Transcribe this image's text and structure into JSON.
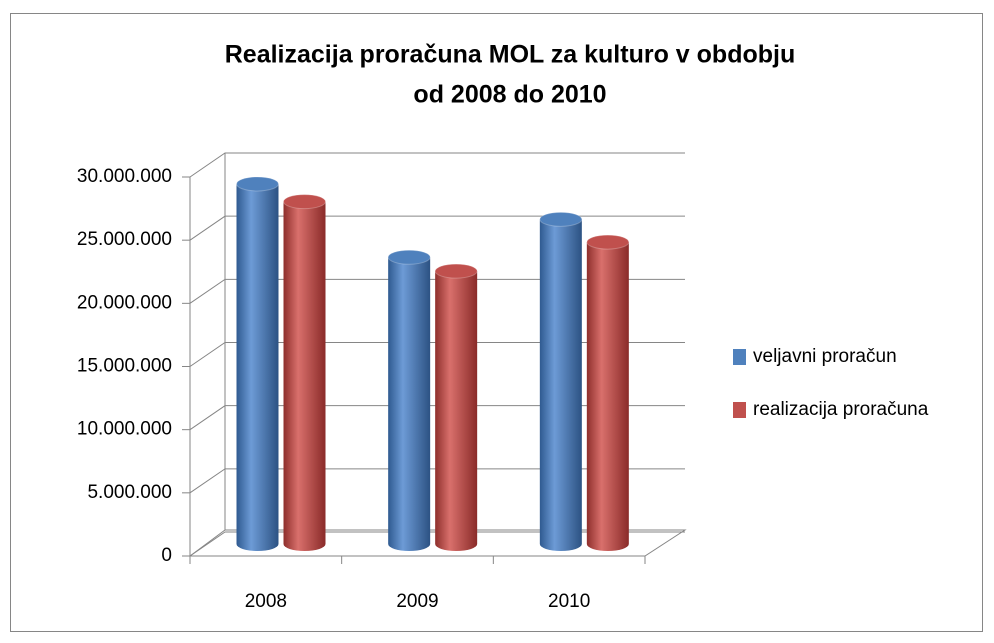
{
  "chart_data": {
    "type": "bar3d",
    "title": [
      "Realizacija proračuna MOL za kulturo v obdobju",
      "od 2008 do 2010"
    ],
    "categories": [
      "2008",
      "2009",
      "2010"
    ],
    "series": [
      {
        "name": "veljavni proračun",
        "color": "#4f81bd",
        "values": [
          28500000,
          22700000,
          25700000
        ]
      },
      {
        "name": "realizacija proračuna",
        "color": "#c0504d",
        "values": [
          27100000,
          21600000,
          23900000
        ]
      }
    ],
    "ylim": [
      0,
      30000000
    ],
    "yticks": [
      0,
      {
        "value": 5000000,
        "label": "5.000.000"
      },
      {
        "value": 10000000,
        "label": "10.000.000"
      },
      {
        "value": 15000000,
        "label": "15.000.000"
      },
      {
        "value": 20000000,
        "label": "20.000.000"
      },
      {
        "value": 25000000,
        "label": "25.000.000"
      },
      {
        "value": 30000000,
        "label": "30.000.000"
      }
    ],
    "grid": true,
    "legend": "right"
  }
}
